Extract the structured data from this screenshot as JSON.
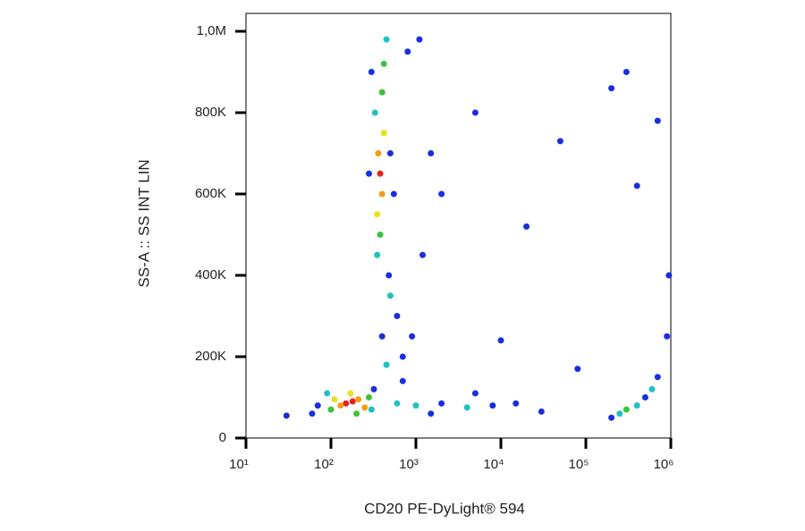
{
  "chart_data": {
    "type": "scatter",
    "x_label": "CD20 PE-DyLight® 594",
    "y_label": "SS-A :: SS INT LIN",
    "xscale": "log",
    "xlim": [
      10,
      1000000
    ],
    "xticks": [
      {
        "value": 10,
        "label": "10¹"
      },
      {
        "value": 100,
        "label": "10²"
      },
      {
        "value": 1000,
        "label": "10³"
      },
      {
        "value": 10000,
        "label": "10⁴"
      },
      {
        "value": 100000,
        "label": "10⁵"
      },
      {
        "value": 1000000,
        "label": "10⁶"
      }
    ],
    "ylim": [
      0,
      1044000
    ],
    "yticks": [
      0,
      {
        "value": 200000,
        "label": "200K"
      },
      {
        "value": 400000,
        "label": "400K"
      },
      {
        "value": 600000,
        "label": "600K"
      },
      {
        "value": 800000,
        "label": "800K"
      },
      {
        "value": 1000000,
        "label": "1,0M"
      }
    ],
    "x": [
      180,
      150,
      210,
      130,
      250,
      170,
      110,
      280,
      100,
      200,
      300,
      90,
      70,
      60,
      320,
      380,
      400,
      360,
      420,
      350,
      400,
      380,
      420,
      350,
      450,
      330,
      500,
      300,
      550,
      280,
      480,
      600,
      400,
      700,
      900,
      1200,
      1500,
      2000,
      800,
      1100,
      500,
      450,
      700,
      600,
      1000,
      2000,
      4000,
      8000,
      15000,
      30000,
      1500,
      5000,
      300000,
      250000,
      400000,
      500000,
      700000,
      900000,
      950000,
      200000,
      600000,
      30,
      5000,
      20000,
      50000,
      200000,
      300000,
      400000,
      700000,
      10000,
      80000
    ],
    "values": [
      90000,
      85000,
      95000,
      80000,
      75000,
      110000,
      95000,
      100000,
      70000,
      60000,
      70000,
      110000,
      80000,
      60000,
      120000,
      650000,
      600000,
      700000,
      750000,
      550000,
      850000,
      500000,
      920000,
      450000,
      980000,
      800000,
      700000,
      900000,
      600000,
      650000,
      400000,
      300000,
      250000,
      200000,
      250000,
      450000,
      700000,
      600000,
      950000,
      980000,
      350000,
      180000,
      140000,
      85000,
      80000,
      85000,
      75000,
      80000,
      85000,
      65000,
      60000,
      110000,
      70000,
      60000,
      80000,
      100000,
      150000,
      250000,
      400000,
      50000,
      120000,
      55000,
      800000,
      520000,
      730000,
      860000,
      900000,
      620000,
      780000,
      240000,
      170000
    ],
    "colors": [
      "#e8201a",
      "#e8201a",
      "#f39c12",
      "#f39c12",
      "#f39c12",
      "#e8e020",
      "#e8e020",
      "#3cc43c",
      "#3cc43c",
      "#3cc43c",
      "#20c0c0",
      "#20c0c0",
      "#1a2ee0",
      "#1a2ee0",
      "#1a2ee0",
      "#e8201a",
      "#f39c12",
      "#f39c12",
      "#e8e020",
      "#e8e020",
      "#3cc43c",
      "#3cc43c",
      "#3cc43c",
      "#20c0c0",
      "#20c0c0",
      "#20c0c0",
      "#1a2ee0",
      "#1a2ee0",
      "#1a2ee0",
      "#1a2ee0",
      "#1a2ee0",
      "#1a2ee0",
      "#1a2ee0",
      "#1a2ee0",
      "#1a2ee0",
      "#1a2ee0",
      "#1a2ee0",
      "#1a2ee0",
      "#1a2ee0",
      "#1a2ee0",
      "#20c0c0",
      "#20c0c0",
      "#1a2ee0",
      "#20c0c0",
      "#20c0c0",
      "#1a2ee0",
      "#20c0c0",
      "#1a2ee0",
      "#1a2ee0",
      "#1a2ee0",
      "#1a2ee0",
      "#1a2ee0",
      "#3cc43c",
      "#20c0c0",
      "#20c0c0",
      "#1a2ee0",
      "#1a2ee0",
      "#1a2ee0",
      "#1a2ee0",
      "#1a2ee0",
      "#20c0c0",
      "#1a2ee0",
      "#1a2ee0",
      "#1a2ee0",
      "#1a2ee0",
      "#1a2ee0",
      "#1a2ee0",
      "#1a2ee0",
      "#1a2ee0",
      "#1a2ee0",
      "#1a2ee0"
    ]
  }
}
